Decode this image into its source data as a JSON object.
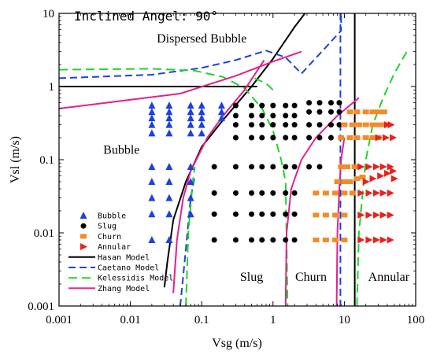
{
  "chart_data": {
    "type": "scatter",
    "title": "Inclined Angel: 90°",
    "xlabel": "Vsg (m/s)",
    "ylabel": "Vsl (m/s)",
    "x_scale": "log",
    "y_scale": "log",
    "xlim": [
      0.001,
      100
    ],
    "ylim": [
      0.001,
      10
    ],
    "x_ticks": [
      {
        "value": 0.001,
        "label": "0.001"
      },
      {
        "value": 0.01,
        "label": "0.01"
      },
      {
        "value": 0.1,
        "label": "0.1"
      },
      {
        "value": 1,
        "label": "1"
      },
      {
        "value": 10,
        "label": "10"
      },
      {
        "value": 100,
        "label": "100"
      }
    ],
    "y_ticks": [
      {
        "value": 0.001,
        "label": "0.001"
      },
      {
        "value": 0.01,
        "label": "0.01"
      },
      {
        "value": 0.1,
        "label": "0.1"
      },
      {
        "value": 1,
        "label": "1"
      },
      {
        "value": 10,
        "label": "10"
      }
    ],
    "grid": false,
    "legend_position": "bottom-left",
    "region_labels": [
      {
        "text": "Dispersed Bubble",
        "x": 0.1,
        "y": 4.0
      },
      {
        "text": "Bubble",
        "x": 0.0075,
        "y": 0.12
      },
      {
        "text": "Slug",
        "x": 0.5,
        "y": 0.0022
      },
      {
        "text": "Churn",
        "x": 3.4,
        "y": 0.0022
      },
      {
        "text": "Annular",
        "x": 42,
        "y": 0.0022
      }
    ],
    "series": [
      {
        "name": "Bubble",
        "kind": "marker",
        "marker": "triangle-up",
        "color": "#1f3fe0",
        "points": [
          [
            0.02,
            0.55
          ],
          [
            0.02,
            0.45
          ],
          [
            0.02,
            0.37
          ],
          [
            0.02,
            0.3
          ],
          [
            0.02,
            0.23
          ],
          [
            0.02,
            0.08
          ],
          [
            0.02,
            0.05
          ],
          [
            0.02,
            0.03
          ],
          [
            0.02,
            0.018
          ],
          [
            0.02,
            0.008
          ],
          [
            0.035,
            0.55
          ],
          [
            0.035,
            0.45
          ],
          [
            0.035,
            0.37
          ],
          [
            0.035,
            0.3
          ],
          [
            0.035,
            0.23
          ],
          [
            0.035,
            0.08
          ],
          [
            0.035,
            0.05
          ],
          [
            0.035,
            0.03
          ],
          [
            0.035,
            0.018
          ],
          [
            0.035,
            0.008
          ],
          [
            0.07,
            0.55
          ],
          [
            0.07,
            0.45
          ],
          [
            0.07,
            0.37
          ],
          [
            0.07,
            0.3
          ],
          [
            0.07,
            0.23
          ],
          [
            0.07,
            0.08
          ],
          [
            0.07,
            0.05
          ],
          [
            0.07,
            0.03
          ],
          [
            0.07,
            0.018
          ],
          [
            0.1,
            0.55
          ],
          [
            0.1,
            0.45
          ],
          [
            0.1,
            0.37
          ],
          [
            0.1,
            0.3
          ],
          [
            0.1,
            0.23
          ],
          [
            0.19,
            0.55
          ],
          [
            0.19,
            0.45
          ],
          [
            0.19,
            0.37
          ]
        ]
      },
      {
        "name": "Slug",
        "kind": "marker",
        "marker": "circle",
        "color": "#000000",
        "points": [
          [
            0.15,
            0.008
          ],
          [
            0.15,
            0.018
          ],
          [
            0.15,
            0.035
          ],
          [
            0.15,
            0.08
          ],
          [
            0.3,
            0.008
          ],
          [
            0.3,
            0.018
          ],
          [
            0.3,
            0.035
          ],
          [
            0.3,
            0.08
          ],
          [
            0.3,
            0.2
          ],
          [
            0.3,
            0.3
          ],
          [
            0.3,
            0.4
          ],
          [
            0.3,
            0.55
          ],
          [
            0.5,
            0.008
          ],
          [
            0.5,
            0.018
          ],
          [
            0.5,
            0.035
          ],
          [
            0.5,
            0.08
          ],
          [
            0.5,
            0.2
          ],
          [
            0.5,
            0.3
          ],
          [
            0.5,
            0.4
          ],
          [
            0.5,
            0.55
          ],
          [
            0.7,
            0.008
          ],
          [
            0.7,
            0.018
          ],
          [
            0.7,
            0.035
          ],
          [
            0.7,
            0.08
          ],
          [
            0.7,
            0.2
          ],
          [
            0.7,
            0.3
          ],
          [
            0.7,
            0.4
          ],
          [
            0.7,
            0.55
          ],
          [
            1.0,
            0.008
          ],
          [
            1.0,
            0.018
          ],
          [
            1.0,
            0.035
          ],
          [
            1.0,
            0.08
          ],
          [
            1.0,
            0.2
          ],
          [
            1.0,
            0.3
          ],
          [
            1.0,
            0.4
          ],
          [
            1.0,
            0.55
          ],
          [
            1.5,
            0.008
          ],
          [
            1.5,
            0.018
          ],
          [
            1.5,
            0.035
          ],
          [
            1.5,
            0.08
          ],
          [
            1.5,
            0.2
          ],
          [
            1.5,
            0.3
          ],
          [
            1.5,
            0.4
          ],
          [
            1.5,
            0.55
          ],
          [
            2.0,
            0.008
          ],
          [
            2.0,
            0.018
          ],
          [
            2.0,
            0.035
          ],
          [
            2.0,
            0.08
          ],
          [
            2.0,
            0.2
          ],
          [
            2.0,
            0.3
          ],
          [
            2.0,
            0.4
          ],
          [
            2.0,
            0.55
          ],
          [
            3.2,
            0.08
          ],
          [
            3.2,
            0.2
          ],
          [
            3.2,
            0.3
          ],
          [
            3.2,
            0.45
          ],
          [
            3.2,
            0.6
          ],
          [
            4.5,
            0.08
          ],
          [
            4.5,
            0.2
          ],
          [
            4.5,
            0.3
          ],
          [
            4.5,
            0.45
          ],
          [
            4.5,
            0.6
          ],
          [
            6.5,
            0.2
          ],
          [
            6.5,
            0.3
          ],
          [
            6.5,
            0.45
          ],
          [
            6.5,
            0.6
          ],
          [
            8.5,
            0.3
          ],
          [
            8.5,
            0.45
          ],
          [
            8.5,
            0.6
          ]
        ]
      },
      {
        "name": "Churn",
        "kind": "marker",
        "marker": "square",
        "color": "#f28c28",
        "points": [
          [
            4.0,
            0.008
          ],
          [
            5.5,
            0.008
          ],
          [
            7.5,
            0.008
          ],
          [
            10,
            0.008
          ],
          [
            4.0,
            0.0175
          ],
          [
            5.5,
            0.0175
          ],
          [
            7.5,
            0.0175
          ],
          [
            10,
            0.0175
          ],
          [
            4.0,
            0.035
          ],
          [
            5.5,
            0.035
          ],
          [
            7.5,
            0.035
          ],
          [
            10,
            0.035
          ],
          [
            13,
            0.035
          ],
          [
            8,
            0.05
          ],
          [
            10,
            0.05
          ],
          [
            12,
            0.05
          ],
          [
            15,
            0.055
          ],
          [
            18,
            0.058
          ],
          [
            9,
            0.08
          ],
          [
            11,
            0.08
          ],
          [
            14,
            0.08
          ],
          [
            9,
            0.2
          ],
          [
            12,
            0.2
          ],
          [
            15,
            0.2
          ],
          [
            20,
            0.2
          ],
          [
            25,
            0.2
          ],
          [
            30,
            0.2
          ],
          [
            10,
            0.3
          ],
          [
            13,
            0.3
          ],
          [
            16,
            0.3
          ],
          [
            20,
            0.3
          ],
          [
            25,
            0.3
          ],
          [
            30,
            0.3
          ],
          [
            36,
            0.3
          ],
          [
            12,
            0.45
          ],
          [
            15,
            0.45
          ],
          [
            20,
            0.45
          ],
          [
            25,
            0.45
          ],
          [
            30,
            0.45
          ],
          [
            36,
            0.45
          ]
        ]
      },
      {
        "name": "Annular",
        "kind": "marker",
        "marker": "triangle-right",
        "color": "#e8211c",
        "points": [
          [
            17,
            0.008
          ],
          [
            22,
            0.008
          ],
          [
            28,
            0.008
          ],
          [
            35,
            0.008
          ],
          [
            44,
            0.008
          ],
          [
            17,
            0.0175
          ],
          [
            22,
            0.0175
          ],
          [
            28,
            0.0175
          ],
          [
            35,
            0.0175
          ],
          [
            44,
            0.0175
          ],
          [
            17,
            0.035
          ],
          [
            22,
            0.035
          ],
          [
            28,
            0.035
          ],
          [
            35,
            0.035
          ],
          [
            44,
            0.035
          ],
          [
            20,
            0.05
          ],
          [
            25,
            0.055
          ],
          [
            32,
            0.06
          ],
          [
            40,
            0.065
          ],
          [
            48,
            0.07
          ],
          [
            50,
            0.055
          ],
          [
            17,
            0.08
          ],
          [
            22,
            0.08
          ],
          [
            28,
            0.08
          ],
          [
            35,
            0.08
          ],
          [
            44,
            0.08
          ],
          [
            30,
            0.2
          ],
          [
            38,
            0.2
          ],
          [
            48,
            0.2
          ],
          [
            45,
            0.3
          ],
          [
            40,
            0.3
          ]
        ]
      },
      {
        "name": "Hasan Model",
        "kind": "line",
        "color": "#000000",
        "dash": "",
        "width": 2,
        "segments": [
          [
            [
              0.001,
              1.0
            ],
            [
              0.6,
              1.0
            ]
          ],
          [
            [
              0.03,
              0.0018
            ],
            [
              0.033,
              0.004
            ],
            [
              0.04,
              0.015
            ],
            [
              0.06,
              0.05
            ],
            [
              0.1,
              0.15
            ],
            [
              0.2,
              0.35
            ],
            [
              0.5,
              1.0
            ],
            [
              1,
              2.4
            ],
            [
              2,
              6.5
            ],
            [
              2.8,
              10
            ]
          ],
          [
            [
              14,
              10
            ],
            [
              14,
              0.001
            ]
          ]
        ]
      },
      {
        "name": "Caetano Model",
        "kind": "line",
        "color": "#1f3fe0",
        "dash": "9,5",
        "width": 2,
        "segments": [
          [
            [
              0.001,
              1.3
            ],
            [
              0.02,
              1.45
            ],
            [
              0.1,
              1.8
            ],
            [
              0.3,
              2.3
            ],
            [
              0.8,
              3.1
            ],
            [
              1.5,
              2.5
            ],
            [
              2.5,
              1.5
            ],
            [
              9,
              5.8
            ],
            [
              9,
              10
            ]
          ],
          [
            [
              0.05,
              0.001
            ],
            [
              0.06,
              0.006
            ],
            [
              0.07,
              0.03
            ],
            [
              0.08,
              0.06
            ]
          ],
          [
            [
              8.8,
              10
            ],
            [
              8.8,
              0.001
            ]
          ]
        ]
      },
      {
        "name": "Kelessidis Model",
        "kind": "line",
        "color": "#21d429",
        "dash": "11,6",
        "width": 2,
        "segments": [
          [
            [
              0.001,
              1.7
            ],
            [
              0.02,
              1.75
            ],
            [
              0.08,
              1.65
            ],
            [
              0.2,
              1.35
            ],
            [
              0.4,
              0.95
            ],
            [
              0.7,
              0.5
            ],
            [
              1.0,
              0.25
            ],
            [
              1.3,
              0.1
            ],
            [
              1.5,
              0.05
            ],
            [
              1.6,
              0.001
            ]
          ],
          [
            [
              0.06,
              0.001
            ],
            [
              0.065,
              0.01
            ],
            [
              0.075,
              0.05
            ],
            [
              0.08,
              0.08
            ]
          ],
          [
            [
              0.55,
              1.3
            ],
            [
              0.8,
              1.1
            ],
            [
              1.0,
              0.9
            ]
          ],
          [
            [
              15,
              0.001
            ],
            [
              16,
              0.01
            ],
            [
              20,
              0.1
            ],
            [
              25,
              0.3
            ],
            [
              35,
              0.7
            ],
            [
              50,
              1.5
            ],
            [
              75,
              3.0
            ]
          ]
        ]
      },
      {
        "name": "Zhang Model",
        "kind": "line",
        "color": "#e61f8a",
        "dash": "",
        "width": 2,
        "segments": [
          [
            [
              0.001,
              0.5
            ],
            [
              0.05,
              0.8
            ],
            [
              0.3,
              1.4
            ],
            [
              1.0,
              2.2
            ],
            [
              2.5,
              3.0
            ]
          ],
          [
            [
              0.04,
              0.0015
            ],
            [
              0.045,
              0.008
            ],
            [
              0.055,
              0.03
            ],
            [
              0.07,
              0.07
            ],
            [
              0.12,
              0.2
            ],
            [
              0.2,
              0.4
            ],
            [
              0.4,
              0.9
            ],
            [
              0.75,
              2.3
            ]
          ],
          [
            [
              1.5,
              0.001
            ],
            [
              1.55,
              0.01
            ],
            [
              1.8,
              0.04
            ],
            [
              2.5,
              0.1
            ],
            [
              4,
              0.2
            ],
            [
              8,
              0.4
            ],
            [
              16,
              0.7
            ]
          ],
          [
            [
              7.8,
              0.001
            ],
            [
              8.0,
              0.01
            ],
            [
              8.5,
              0.04
            ],
            [
              9,
              0.1
            ],
            [
              10,
              0.2
            ]
          ]
        ]
      }
    ]
  }
}
